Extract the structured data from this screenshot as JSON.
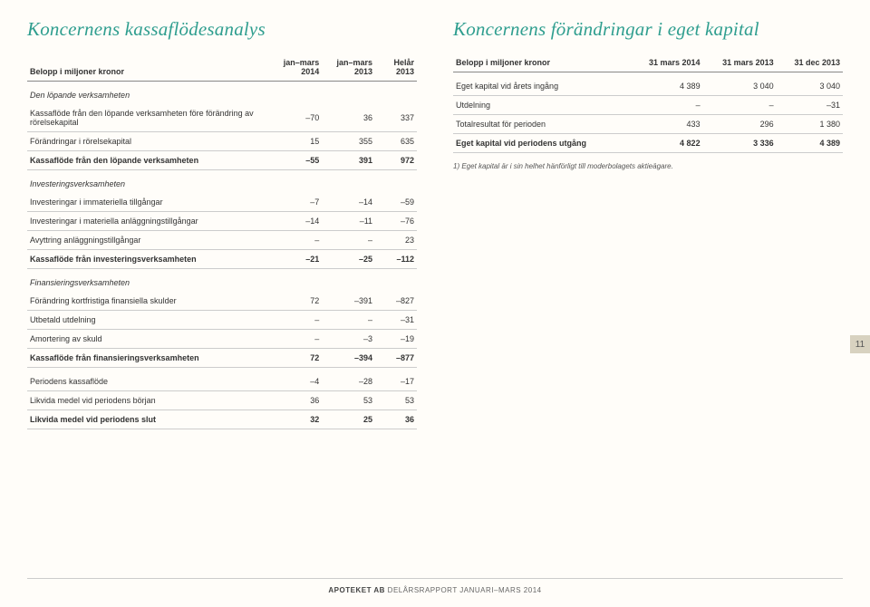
{
  "left": {
    "title": "Koncernens kassaflödesanalys",
    "header": {
      "c0": "Belopp i miljoner kronor",
      "c1": "jan–mars 2014",
      "c2": "jan–mars 2013",
      "c3": "Helår 2013"
    },
    "s1": {
      "head": "Den löpande verksamheten",
      "r1": {
        "l": "Kassaflöde från den löpande verksamheten före förändring av rörelsekapital",
        "v1": "–70",
        "v2": "36",
        "v3": "337"
      },
      "r2": {
        "l": "Förändringar i rörelsekapital",
        "v1": "15",
        "v2": "355",
        "v3": "635"
      },
      "r3": {
        "l": "Kassaflöde från den löpande verksamheten",
        "v1": "–55",
        "v2": "391",
        "v3": "972"
      }
    },
    "s2": {
      "head": "Investeringsverksamheten",
      "r1": {
        "l": "Investeringar i immateriella tillgångar",
        "v1": "–7",
        "v2": "–14",
        "v3": "–59"
      },
      "r2": {
        "l": "Investeringar i materiella anläggningstillgångar",
        "v1": "–14",
        "v2": "–11",
        "v3": "–76"
      },
      "r3": {
        "l": "Avyttring anläggningstillgångar",
        "v1": "–",
        "v2": "–",
        "v3": "23"
      },
      "r4": {
        "l": "Kassaflöde från investeringsverksamheten",
        "v1": "–21",
        "v2": "–25",
        "v3": "–112"
      }
    },
    "s3": {
      "head": "Finansieringsverksamheten",
      "r1": {
        "l": "Förändring kortfristiga finansiella skulder",
        "v1": "72",
        "v2": "–391",
        "v3": "–827"
      },
      "r2": {
        "l": "Utbetald utdelning",
        "v1": "–",
        "v2": "–",
        "v3": "–31"
      },
      "r3": {
        "l": "Amortering av skuld",
        "v1": "–",
        "v2": "–3",
        "v3": "–19"
      },
      "r4": {
        "l": "Kassaflöde från finansieringsverksamheten",
        "v1": "72",
        "v2": "–394",
        "v3": "–877"
      }
    },
    "s4": {
      "r1": {
        "l": "Periodens kassaflöde",
        "v1": "–4",
        "v2": "–28",
        "v3": "–17"
      },
      "r2": {
        "l": "Likvida medel vid periodens början",
        "v1": "36",
        "v2": "53",
        "v3": "53"
      },
      "r3": {
        "l": "Likvida medel vid periodens slut",
        "v1": "32",
        "v2": "25",
        "v3": "36"
      }
    }
  },
  "right": {
    "title": "Koncernens förändringar i eget kapital",
    "header": {
      "c0": "Belopp i miljoner kronor",
      "c1": "31 mars 2014",
      "c2": "31 mars 2013",
      "c3": "31 dec 2013"
    },
    "r1": {
      "l": "Eget kapital vid årets ingång",
      "v1": "4 389",
      "v2": "3 040",
      "v3": "3 040"
    },
    "r2": {
      "l": "Utdelning",
      "v1": "–",
      "v2": "–",
      "v3": "–31"
    },
    "r3": {
      "l": "Totalresultat för perioden",
      "v1": "433",
      "v2": "296",
      "v3": "1 380"
    },
    "r4": {
      "l": "Eget kapital vid periodens utgång",
      "v1": "4 822",
      "v2": "3 336",
      "v3": "4 389"
    },
    "footnote": "1) Eget kapital är i sin helhet hänförligt till moderbolagets aktieägare."
  },
  "page_num": "11",
  "footer": {
    "bold": "APOTEKET AB",
    "rest": " DELÅRSRAPPORT JANUARI–MARS 2014"
  },
  "style": {
    "accent_color": "#2f9e8f",
    "background_color": "#fffdf9",
    "page_badge_bg": "#d8d2c0",
    "header_rule": "#888888",
    "row_rule": "#cccccc",
    "title_fontsize_pt": 21,
    "body_fontsize_pt": 9,
    "footnote_fontsize_pt": 8
  }
}
